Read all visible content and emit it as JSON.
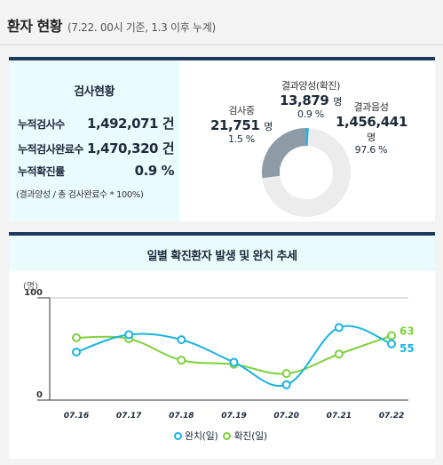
{
  "header": {
    "title": "환자 현황",
    "subtitle": "(7.22. 00시 기준, 1.3 이후 누계)"
  },
  "test_status": {
    "heading": "검사현황",
    "rows": [
      {
        "label": "누적검사수",
        "value": "1,492,071 건"
      },
      {
        "label": "누적검사완료수",
        "value": "1,470,320 건"
      },
      {
        "label": "누적확진률",
        "value": "0.9 %"
      }
    ],
    "note": "(결과양성 / 총 검사완료수 * 100%)"
  },
  "breakdown": {
    "testing": {
      "label": "검사중",
      "count": "21,751",
      "unit": "명",
      "percent": "1.5 %",
      "color": "#8c9ba6"
    },
    "positive": {
      "label": "결과양성(확진)",
      "count": "13,879",
      "unit": "명",
      "percent": "0.9 %",
      "color": "#1ab7e6"
    },
    "negative": {
      "label": "결과음성",
      "count": "1,456,441",
      "unit": "명",
      "percent": "97.6 %",
      "color": "#ececec"
    }
  },
  "chart_data": {
    "type": "line",
    "title": "일별 확진환자 발생 및 완치 추세",
    "ylabel": "(명)",
    "ylim": [
      0,
      100
    ],
    "yticks": [
      "100",
      "0"
    ],
    "categories": [
      "07.16",
      "07.17",
      "07.18",
      "07.19",
      "07.20",
      "07.21",
      "07.22"
    ],
    "series": [
      {
        "name": "완치(일)",
        "color": "#1ab3e0",
        "values": [
          47,
          64,
          59,
          37,
          15,
          71,
          55
        ]
      },
      {
        "name": "확진(일)",
        "color": "#7dd13a",
        "values": [
          61,
          60,
          39,
          35,
          26,
          45,
          63
        ]
      }
    ],
    "end_labels": [
      "55",
      "63"
    ],
    "grid": false,
    "legend": "bottom"
  }
}
